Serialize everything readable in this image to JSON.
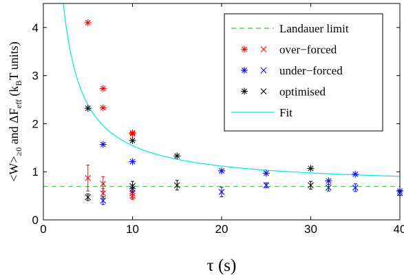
{
  "chart_data": {
    "type": "scatter",
    "title": "",
    "xlabel": "τ (s)",
    "ylabel": "<W>≥0 and ΔFeff (kBT units)",
    "ylabel_parts": [
      "<W>",
      "≥0",
      " and ΔF",
      "eff",
      " (k",
      "B",
      "T units)"
    ],
    "xlim": [
      0,
      40
    ],
    "ylim": [
      0,
      4.5
    ],
    "xticks": [
      0,
      10,
      20,
      30,
      40
    ],
    "yticks": [
      0,
      1,
      2,
      3,
      4
    ],
    "grid": false,
    "legend_position": "top-right",
    "colors": {
      "landauer": "#33cc33",
      "over_forced": "#ff0000",
      "under_forced": "#0000ff",
      "optimised": "#000000",
      "fit": "#00e5e5",
      "axis": "#000000"
    },
    "legend": [
      {
        "label": "Landauer limit",
        "kind": "dashed-line",
        "color": "#33cc33"
      },
      {
        "label": "over−forced",
        "kind": "star-cross",
        "color": "#ff0000"
      },
      {
        "label": "under−forced",
        "kind": "star-cross",
        "color": "#0000ff"
      },
      {
        "label": "optimised",
        "kind": "star-cross",
        "color": "#000000"
      },
      {
        "label": "Fit",
        "kind": "solid-line",
        "color": "#00e5e5"
      }
    ],
    "landauer_limit": 0.693,
    "fit": {
      "form": "a + b/x",
      "a": 0.693,
      "b": 8.5,
      "x_range": [
        2.2,
        40
      ]
    },
    "series": [
      {
        "name": "over−forced",
        "color": "#ff0000",
        "stars": [
          {
            "x": 5,
            "y": 4.1
          },
          {
            "x": 6.7,
            "y": 2.73
          },
          {
            "x": 6.7,
            "y": 2.33
          },
          {
            "x": 10,
            "y": 1.81
          },
          {
            "x": 10,
            "y": 1.79
          }
        ],
        "crosses": [
          {
            "x": 5,
            "y": 0.87,
            "err": 0.27
          },
          {
            "x": 6.7,
            "y": 0.75,
            "err": 0.15
          },
          {
            "x": 6.7,
            "y": 0.55,
            "err": 0.1
          },
          {
            "x": 10,
            "y": 0.55,
            "err": 0.1
          },
          {
            "x": 10,
            "y": 0.5,
            "err": 0.08
          }
        ]
      },
      {
        "name": "under−forced",
        "color": "#0000ff",
        "stars": [
          {
            "x": 6.7,
            "y": 1.57
          },
          {
            "x": 10,
            "y": 1.21
          },
          {
            "x": 20,
            "y": 1.02
          },
          {
            "x": 25,
            "y": 0.97
          },
          {
            "x": 32,
            "y": 0.81
          },
          {
            "x": 35,
            "y": 0.95
          },
          {
            "x": 40,
            "y": 0.6
          }
        ],
        "crosses": [
          {
            "x": 6.7,
            "y": 0.4,
            "err": 0.08
          },
          {
            "x": 10,
            "y": 0.65,
            "err": 0.08
          },
          {
            "x": 20,
            "y": 0.58,
            "err": 0.1
          },
          {
            "x": 25,
            "y": 0.72,
            "err": 0.05
          },
          {
            "x": 32,
            "y": 0.67,
            "err": 0.07
          },
          {
            "x": 35,
            "y": 0.67,
            "err": 0.08
          },
          {
            "x": 40,
            "y": 0.56,
            "err": 0.05
          }
        ]
      },
      {
        "name": "optimised",
        "color": "#000000",
        "stars": [
          {
            "x": 5,
            "y": 2.32
          },
          {
            "x": 10,
            "y": 1.65
          },
          {
            "x": 15,
            "y": 1.33
          },
          {
            "x": 30,
            "y": 1.07
          }
        ],
        "crosses": [
          {
            "x": 5,
            "y": 0.47,
            "err": 0.07
          },
          {
            "x": 10,
            "y": 0.7,
            "err": 0.1
          },
          {
            "x": 15,
            "y": 0.72,
            "err": 0.1
          },
          {
            "x": 30,
            "y": 0.72,
            "err": 0.08
          }
        ]
      }
    ]
  }
}
